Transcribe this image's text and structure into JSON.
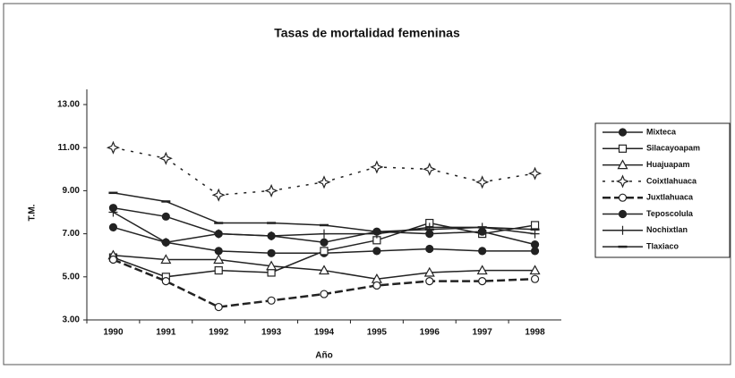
{
  "chart_data": {
    "type": "line",
    "title": "Tasas de mortalidad femeninas",
    "x_label": "Año",
    "y_label": "T.M.",
    "categories": [
      "1990",
      "1991",
      "1992",
      "1993",
      "1994",
      "1995",
      "1996",
      "1997",
      "1998"
    ],
    "ylim": [
      3,
      13
    ],
    "yticks": [
      {
        "value": 3,
        "label": "3.00"
      },
      {
        "value": 5,
        "label": "5.00"
      },
      {
        "value": 7,
        "label": "7.00"
      },
      {
        "value": 9,
        "label": "9.00"
      },
      {
        "value": 11,
        "label": "11.00"
      },
      {
        "value": 13,
        "label": "13.00"
      }
    ],
    "grid": false,
    "legend": "right",
    "series": [
      {
        "name": "Mixteca",
        "color": "#222222",
        "marker": "circle-filled",
        "dash": "none",
        "values": [
          7.3,
          6.6,
          6.2,
          6.1,
          6.1,
          6.2,
          6.3,
          6.2,
          6.2
        ]
      },
      {
        "name": "Silacayoapam",
        "color": "#222222",
        "marker": "square-open",
        "dash": "none",
        "values": [
          5.9,
          5.0,
          5.3,
          5.2,
          6.2,
          6.7,
          7.5,
          7.0,
          7.4
        ]
      },
      {
        "name": "Huajuapam",
        "color": "#222222",
        "marker": "triangle-open",
        "dash": "none",
        "values": [
          6.0,
          5.8,
          5.8,
          5.5,
          5.3,
          4.9,
          5.2,
          5.3,
          5.3
        ]
      },
      {
        "name": "Coixtlahuaca",
        "color": "#222222",
        "marker": "star-open",
        "dash": "dotted",
        "values": [
          11.0,
          10.5,
          8.8,
          9.0,
          9.4,
          10.1,
          10.0,
          9.4,
          9.8
        ]
      },
      {
        "name": "Juxtlahuaca",
        "color": "#222222",
        "marker": "circle-open",
        "dash": "dashed",
        "values": [
          5.8,
          4.8,
          3.6,
          3.9,
          4.2,
          4.6,
          4.8,
          4.8,
          4.9
        ]
      },
      {
        "name": "Teposcolula",
        "color": "#222222",
        "marker": "circle-filled",
        "dash": "none",
        "values": [
          8.2,
          7.8,
          7.0,
          6.9,
          6.6,
          7.1,
          7.0,
          7.1,
          6.5
        ]
      },
      {
        "name": "Nochixtlan",
        "color": "#222222",
        "marker": "plus",
        "dash": "none",
        "values": [
          8.0,
          6.6,
          7.0,
          6.9,
          7.0,
          7.0,
          7.3,
          7.3,
          7.0
        ]
      },
      {
        "name": "Tlaxiaco",
        "color": "#222222",
        "marker": "dash",
        "dash": "none",
        "values": [
          8.9,
          8.5,
          7.5,
          7.5,
          7.4,
          7.1,
          7.2,
          7.3,
          7.2
        ]
      }
    ]
  }
}
